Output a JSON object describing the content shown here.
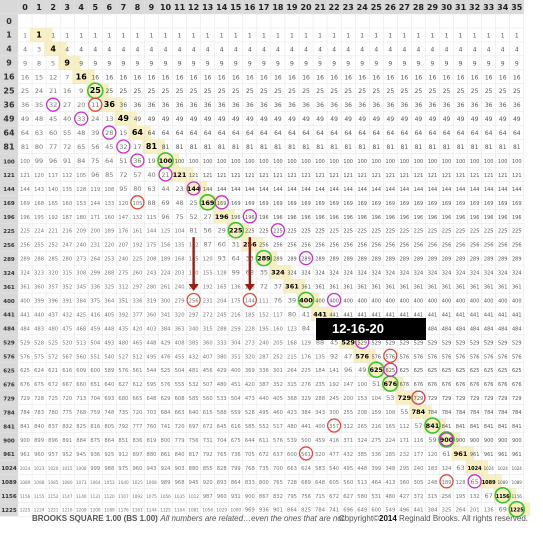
{
  "footer": {
    "title": "BROOKS SQUARE 1.00 (BS 1.00)",
    "note": "All numbers are related…even the ones that are not!",
    "copyright_prefix": "Copyright",
    "copyright_year": "2014",
    "copyright_suffix": "Reginald Brooks. All rights reserved."
  },
  "annotation": {
    "date_label": "12-16-20"
  },
  "grid": {
    "rows": 36,
    "cols": 36,
    "square_values": [
      1,
      4,
      9,
      16,
      25,
      36,
      49,
      64,
      81,
      100,
      121,
      144,
      169,
      196,
      225,
      256,
      289,
      324,
      361,
      400,
      441,
      484,
      529,
      576,
      625,
      676,
      729,
      784,
      841,
      900,
      961,
      1024,
      1089,
      1156,
      1225
    ]
  },
  "highlights": {
    "green_squares": [
      25,
      100,
      169,
      225,
      289,
      400,
      625,
      676,
      841,
      900,
      1156,
      1225
    ],
    "bold_squares": [
      144,
      256,
      324,
      361,
      441,
      484,
      529,
      576,
      729,
      784,
      961,
      1024,
      1089
    ]
  },
  "colors": {
    "header_bg": "#d9d9d9",
    "yellow": "#f3e48e",
    "green_circle": "#39c42c",
    "magenta_circle": "#c531c8",
    "red_circle": "#e04a3a",
    "arrow": "#a01c10",
    "banner": "#000000"
  }
}
